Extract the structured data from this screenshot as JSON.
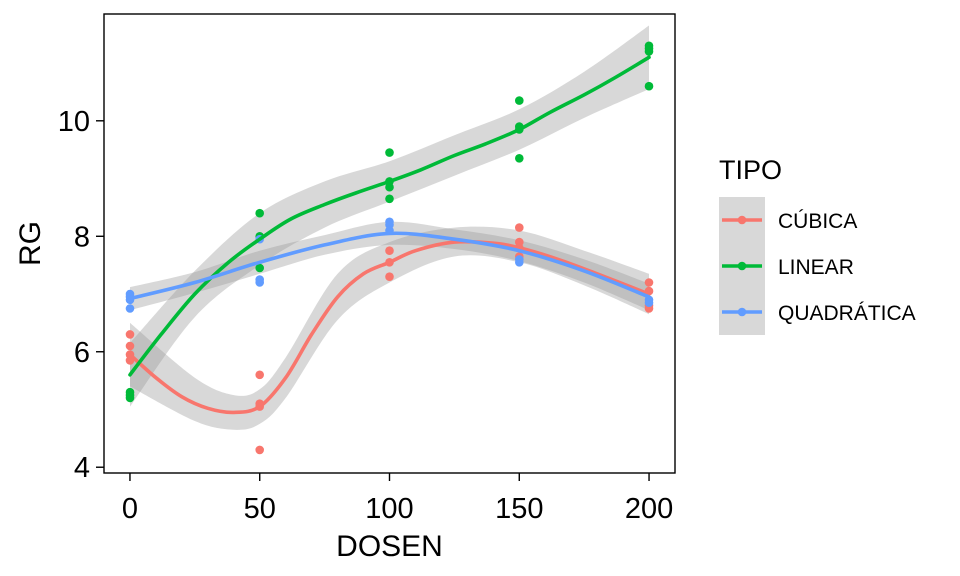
{
  "chart_data": {
    "type": "scatter",
    "xlabel": "DOSEN",
    "ylabel": "RG",
    "xlim": [
      -10,
      210
    ],
    "ylim": [
      3.9,
      11.85
    ],
    "x_ticks": [
      0,
      50,
      100,
      150,
      200
    ],
    "y_ticks": [
      4,
      6,
      8,
      10
    ],
    "x_tick_labels": [
      "0",
      "50",
      "100",
      "150",
      "200"
    ],
    "y_tick_labels": [
      "4",
      "6",
      "8",
      "10"
    ],
    "grid": false,
    "legend": {
      "title": "TIPO",
      "position": "right",
      "entries": [
        "CÚBICA",
        "LINEAR",
        "QUADRÁTICA"
      ]
    },
    "series": [
      {
        "name": "CÚBICA",
        "color": "#F8766D",
        "points": [
          [
            0,
            6.3
          ],
          [
            0,
            6.1
          ],
          [
            0,
            5.95
          ],
          [
            0,
            5.85
          ],
          [
            50,
            5.6
          ],
          [
            50,
            5.1
          ],
          [
            50,
            5.05
          ],
          [
            50,
            4.3
          ],
          [
            100,
            7.75
          ],
          [
            100,
            7.55
          ],
          [
            100,
            7.3
          ],
          [
            150,
            8.15
          ],
          [
            150,
            7.9
          ],
          [
            150,
            7.8
          ],
          [
            150,
            7.65
          ],
          [
            200,
            7.2
          ],
          [
            200,
            7.05
          ],
          [
            200,
            6.8
          ],
          [
            200,
            6.75
          ]
        ],
        "fit": [
          [
            0,
            5.95
          ],
          [
            10,
            5.55
          ],
          [
            20,
            5.22
          ],
          [
            30,
            5.02
          ],
          [
            40,
            4.95
          ],
          [
            50,
            5.05
          ],
          [
            60,
            5.55
          ],
          [
            70,
            6.3
          ],
          [
            80,
            6.95
          ],
          [
            90,
            7.35
          ],
          [
            100,
            7.55
          ],
          [
            110,
            7.75
          ],
          [
            125,
            7.9
          ],
          [
            140,
            7.88
          ],
          [
            150,
            7.8
          ],
          [
            165,
            7.6
          ],
          [
            180,
            7.35
          ],
          [
            200,
            7.0
          ]
        ],
        "band": [
          [
            0,
            5.4,
            6.5
          ],
          [
            25,
            4.8,
            5.55
          ],
          [
            40,
            4.65,
            5.25
          ],
          [
            50,
            4.75,
            5.35
          ],
          [
            60,
            5.2,
            5.9
          ],
          [
            80,
            6.55,
            7.35
          ],
          [
            100,
            7.2,
            7.9
          ],
          [
            125,
            7.65,
            8.15
          ],
          [
            150,
            7.55,
            8.1
          ],
          [
            175,
            7.15,
            7.75
          ],
          [
            200,
            6.65,
            7.35
          ]
        ]
      },
      {
        "name": "LINEAR",
        "color": "#00BA38",
        "points": [
          [
            0,
            5.3
          ],
          [
            0,
            5.25
          ],
          [
            0,
            5.2
          ],
          [
            50,
            8.4
          ],
          [
            50,
            8.0
          ],
          [
            50,
            7.45
          ],
          [
            100,
            9.45
          ],
          [
            100,
            8.95
          ],
          [
            100,
            8.85
          ],
          [
            100,
            8.65
          ],
          [
            150,
            10.35
          ],
          [
            150,
            9.9
          ],
          [
            150,
            9.85
          ],
          [
            150,
            9.35
          ],
          [
            200,
            11.3
          ],
          [
            200,
            11.25
          ],
          [
            200,
            11.2
          ],
          [
            200,
            10.6
          ]
        ],
        "fit": [
          [
            0,
            5.6
          ],
          [
            12,
            6.3
          ],
          [
            25,
            7.0
          ],
          [
            38,
            7.55
          ],
          [
            50,
            7.95
          ],
          [
            62,
            8.3
          ],
          [
            75,
            8.55
          ],
          [
            87,
            8.75
          ],
          [
            100,
            8.95
          ],
          [
            112,
            9.15
          ],
          [
            125,
            9.4
          ],
          [
            137,
            9.6
          ],
          [
            150,
            9.85
          ],
          [
            162,
            10.15
          ],
          [
            175,
            10.45
          ],
          [
            187,
            10.75
          ],
          [
            200,
            11.1
          ]
        ],
        "band": [
          [
            0,
            5.05,
            6.15
          ],
          [
            25,
            6.6,
            7.4
          ],
          [
            50,
            7.5,
            8.4
          ],
          [
            75,
            8.15,
            8.95
          ],
          [
            100,
            8.6,
            9.3
          ],
          [
            125,
            9.05,
            9.75
          ],
          [
            150,
            9.5,
            10.2
          ],
          [
            175,
            10.05,
            10.85
          ],
          [
            200,
            10.55,
            11.65
          ]
        ]
      },
      {
        "name": "QUADRÁTICA",
        "color": "#619CFF",
        "points": [
          [
            0,
            7.0
          ],
          [
            0,
            6.95
          ],
          [
            0,
            6.9
          ],
          [
            0,
            6.75
          ],
          [
            50,
            7.95
          ],
          [
            50,
            7.25
          ],
          [
            50,
            7.2
          ],
          [
            100,
            8.25
          ],
          [
            100,
            8.2
          ],
          [
            100,
            8.1
          ],
          [
            150,
            7.55
          ],
          [
            150,
            7.6
          ],
          [
            200,
            6.9
          ],
          [
            200,
            6.85
          ]
        ],
        "fit": [
          [
            0,
            6.92
          ],
          [
            25,
            7.2
          ],
          [
            50,
            7.55
          ],
          [
            75,
            7.85
          ],
          [
            100,
            8.05
          ],
          [
            125,
            7.95
          ],
          [
            150,
            7.75
          ],
          [
            175,
            7.4
          ],
          [
            200,
            6.95
          ]
        ],
        "band": [
          [
            0,
            6.72,
            7.12
          ],
          [
            25,
            7.02,
            7.38
          ],
          [
            50,
            7.35,
            7.75
          ],
          [
            75,
            7.68,
            8.02
          ],
          [
            100,
            7.85,
            8.25
          ],
          [
            125,
            7.78,
            8.12
          ],
          [
            150,
            7.57,
            7.93
          ],
          [
            175,
            7.2,
            7.6
          ],
          [
            200,
            6.72,
            7.18
          ]
        ]
      }
    ]
  }
}
